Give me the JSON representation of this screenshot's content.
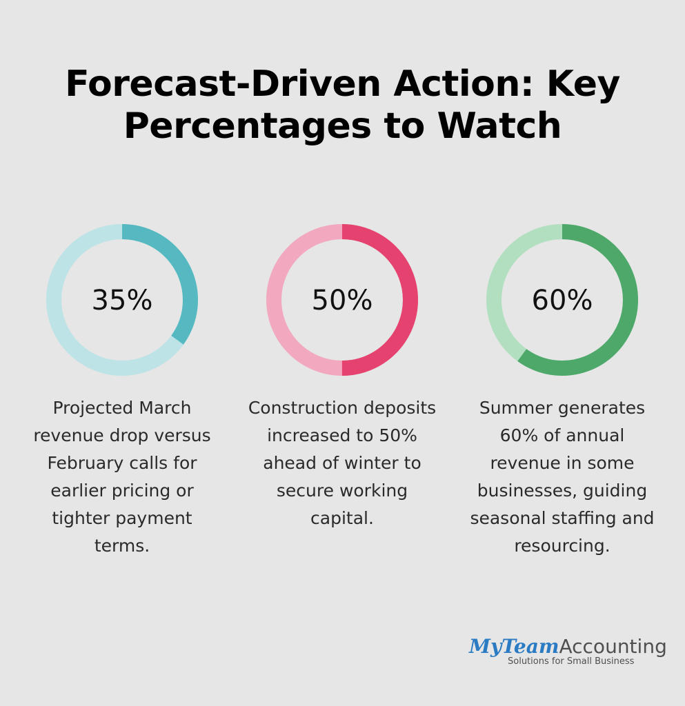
{
  "title": {
    "line1": "Forecast-Driven Action: Key",
    "line2": "Percentages to Watch"
  },
  "chart_data": {
    "type": "pie",
    "items": [
      {
        "value": 35,
        "label": "35%",
        "description": "Projected March revenue drop versus February calls for earlier pricing or tighter payment terms.",
        "color": "#56b9c1",
        "track_color": "#bde3e6"
      },
      {
        "value": 50,
        "label": "50%",
        "description": "Construction deposits increased to 50% ahead of winter to secure working capital.",
        "color": "#e5426f",
        "track_color": "#f2a9c0"
      },
      {
        "value": 60,
        "label": "60%",
        "description": "Summer generates 60% of annual revenue in some businesses, guiding seasonal staffing and resourcing.",
        "color": "#4ea86a",
        "track_color": "#b2dfc0"
      }
    ]
  },
  "logo": {
    "brand_my": "MyTeam",
    "brand_rest": "Accounting",
    "tagline": "Solutions for Small Business"
  }
}
